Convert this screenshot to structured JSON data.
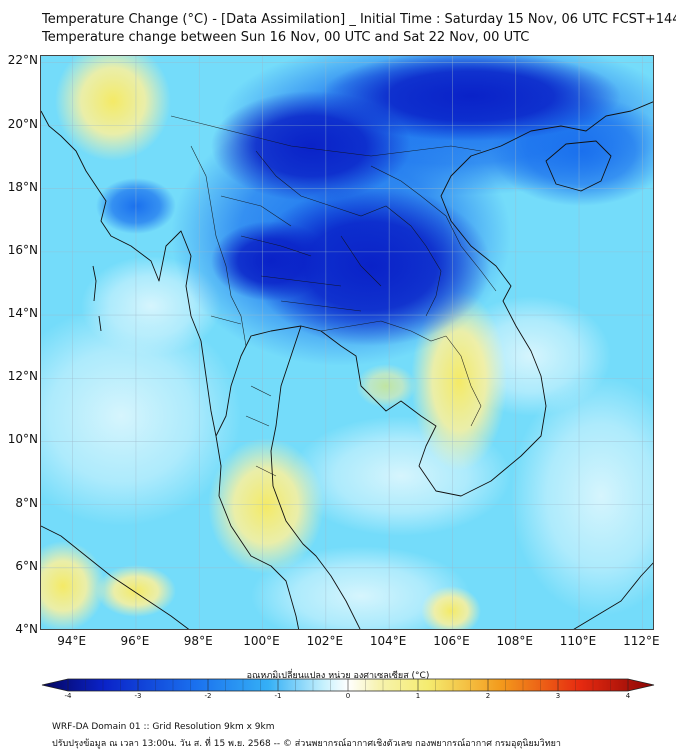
{
  "header": {
    "title_line1": "Temperature Change (°C) - [Data Assimilation] _ Initial Time : Saturday 15 Nov, 06 UTC FCST+144",
    "title_line2": "Temperature change between Sun 16 Nov, 00 UTC and Sat 22 Nov, 00 UTC"
  },
  "map": {
    "lat_labels": [
      "22°N",
      "20°N",
      "18°N",
      "16°N",
      "14°N",
      "12°N",
      "10°N",
      "8°N",
      "6°N",
      "4°N"
    ],
    "lon_labels": [
      "94°E",
      "96°E",
      "98°E",
      "100°E",
      "102°E",
      "104°E",
      "106°E",
      "108°E",
      "110°E",
      "112°E"
    ],
    "lat_values": [
      22,
      20,
      18,
      16,
      14,
      12,
      10,
      8,
      6,
      4
    ],
    "lon_values": [
      94,
      96,
      98,
      100,
      102,
      104,
      106,
      108,
      110,
      112
    ],
    "lon_range": [
      93,
      112.4
    ],
    "lat_range": [
      4,
      22.2
    ]
  },
  "colorbar": {
    "label": "อุณหภูมิเปลี่ยนแปลง หน่วย องศาเซลเซียส (°C)",
    "tick_labels": [
      "-4",
      "-3",
      "-2",
      "-1",
      "0",
      "1",
      "2",
      "3",
      "4"
    ],
    "min": -4,
    "max": 4
  },
  "footer": {
    "line1": "WRF-DA Domain 01 :: Grid Resolution 9km x 9km",
    "line2": "ปรับปรุงข้อมูล ณ เวลา 13:00น. วัน ส. ที่ 15 พ.ย. 2568 -- © ส่วนพยากรณ์อากาศเชิงตัวเลข กองพยากรณ์อากาศ กรมอุตุนิยมวิทยา"
  },
  "colors": {
    "deep_blue": "#0a22c8",
    "blue": "#1a70ee",
    "mid_blue": "#35b0f6",
    "light_cyan": "#7ee0fb",
    "pale_cyan": "#c6f1fd",
    "pale_yellow": "#f7f3b0",
    "yellow": "#f5ec70",
    "orange": "#f39a1c",
    "red": "#e62a10",
    "dark_red": "#8a0505",
    "navy": "#05055c"
  }
}
